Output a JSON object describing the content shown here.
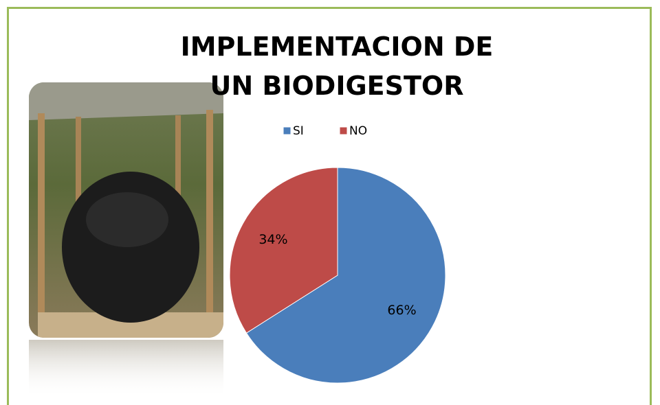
{
  "chart_data": {
    "type": "pie",
    "title": "IMPLEMENTACION DE UN BIODIGESTOR",
    "categories": [
      "SI",
      "NO"
    ],
    "values": [
      66,
      34
    ],
    "value_labels": [
      "66%",
      "34%"
    ],
    "colors": [
      "#4a7ebb",
      "#be4b48"
    ],
    "legend": "top"
  }
}
